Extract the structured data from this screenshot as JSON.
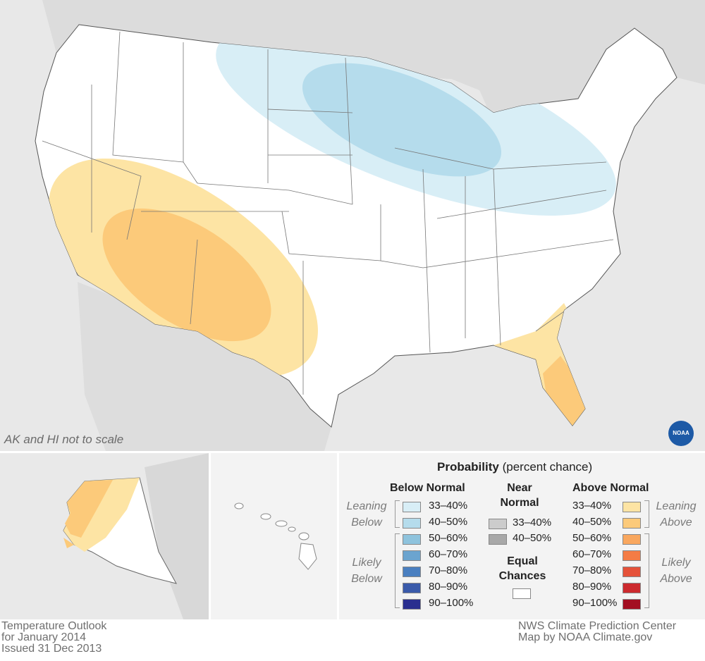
{
  "map": {
    "inset_note": "AK and HI not to scale",
    "logo_text": "NOAA"
  },
  "legend": {
    "title_bold": "Probability",
    "title_rest": "(percent chance)",
    "below_header": "Below Normal",
    "near_header_1": "Near",
    "near_header_2": "Normal",
    "above_header": "Above Normal",
    "equal_1": "Equal",
    "equal_2": "Chances",
    "leaning_below_1": "Leaning",
    "leaning_below_2": "Below",
    "likely_below_1": "Likely",
    "likely_below_2": "Below",
    "leaning_above_1": "Leaning",
    "leaning_above_2": "Above",
    "likely_above_1": "Likely",
    "likely_above_2": "Above",
    "below": [
      {
        "label": "33–40%",
        "color": "#d8eef6"
      },
      {
        "label": "40–50%",
        "color": "#b5dcec"
      },
      {
        "label": "50–60%",
        "color": "#8ec3dd"
      },
      {
        "label": "60–70%",
        "color": "#6ba4cf"
      },
      {
        "label": "70–80%",
        "color": "#4a7fc0"
      },
      {
        "label": "80–90%",
        "color": "#3a5aaa"
      },
      {
        "label": "90–100%",
        "color": "#2a2f8f"
      }
    ],
    "near": [
      {
        "label": "33–40%",
        "color": "#cccccc"
      },
      {
        "label": "40–50%",
        "color": "#a8a8a8"
      }
    ],
    "above": [
      {
        "label": "33–40%",
        "color": "#fde4a4"
      },
      {
        "label": "40–50%",
        "color": "#fcca7a"
      },
      {
        "label": "50–60%",
        "color": "#f9a75e"
      },
      {
        "label": "60–70%",
        "color": "#f47c45"
      },
      {
        "label": "70–80%",
        "color": "#e5523a"
      },
      {
        "label": "80–90%",
        "color": "#cc2a2e"
      },
      {
        "label": "90–100%",
        "color": "#a30f22"
      }
    ]
  },
  "footer": {
    "left": "Temperature Outlook\nfor January 2014\nIssued 31 Dec 2013",
    "right": "NWS Climate Prediction Center\nMap by NOAA Climate.gov"
  }
}
